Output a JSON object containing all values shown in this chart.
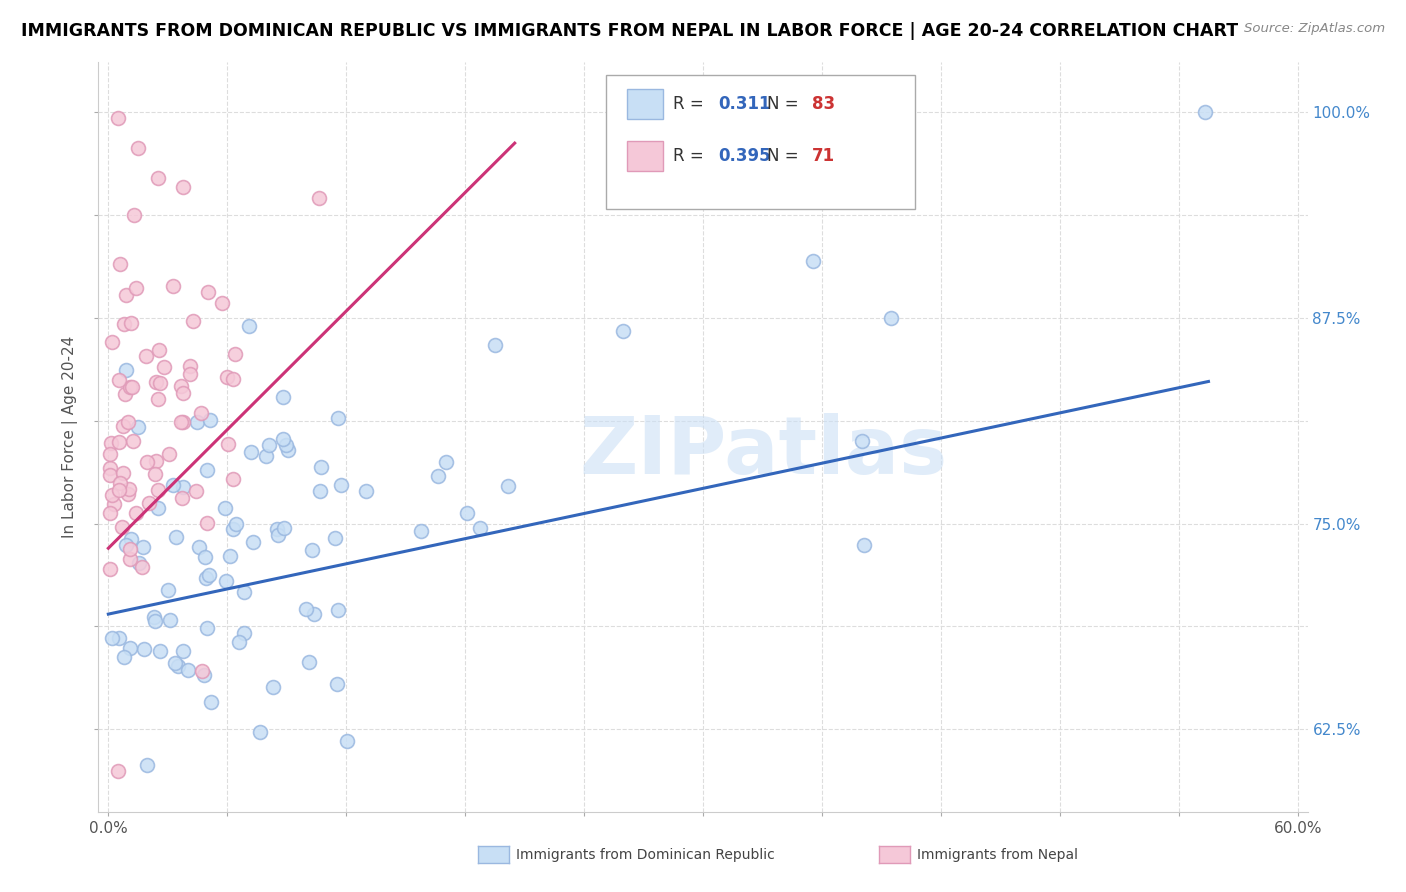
{
  "title": "IMMIGRANTS FROM DOMINICAN REPUBLIC VS IMMIGRANTS FROM NEPAL IN LABOR FORCE | AGE 20-24 CORRELATION CHART",
  "source": "Source: ZipAtlas.com",
  "ylabel": "In Labor Force | Age 20-24",
  "xlim": [
    -0.005,
    0.605
  ],
  "ylim": [
    0.575,
    1.03
  ],
  "x_tick_positions": [
    0.0,
    0.06,
    0.12,
    0.18,
    0.24,
    0.3,
    0.36,
    0.42,
    0.48,
    0.54,
    0.6
  ],
  "x_tick_labels": [
    "0.0%",
    "",
    "",
    "",
    "",
    "",
    "",
    "",
    "",
    "",
    "60.0%"
  ],
  "y_tick_positions": [
    0.625,
    0.6875,
    0.75,
    0.8125,
    0.875,
    0.9375,
    1.0
  ],
  "y_tick_labels": [
    "62.5%",
    "",
    "75.0%",
    "",
    "87.5%",
    "",
    "100.0%"
  ],
  "legend_blue_R": "0.311",
  "legend_blue_N": "83",
  "legend_pink_R": "0.395",
  "legend_pink_N": "71",
  "blue_face_color": "#c8dff5",
  "blue_edge_color": "#9ab8e0",
  "pink_face_color": "#f5c8d8",
  "pink_edge_color": "#e09ab8",
  "blue_line_color": "#3366bb",
  "pink_line_color": "#cc3377",
  "watermark": "ZIPatlas",
  "dot_size": 100
}
